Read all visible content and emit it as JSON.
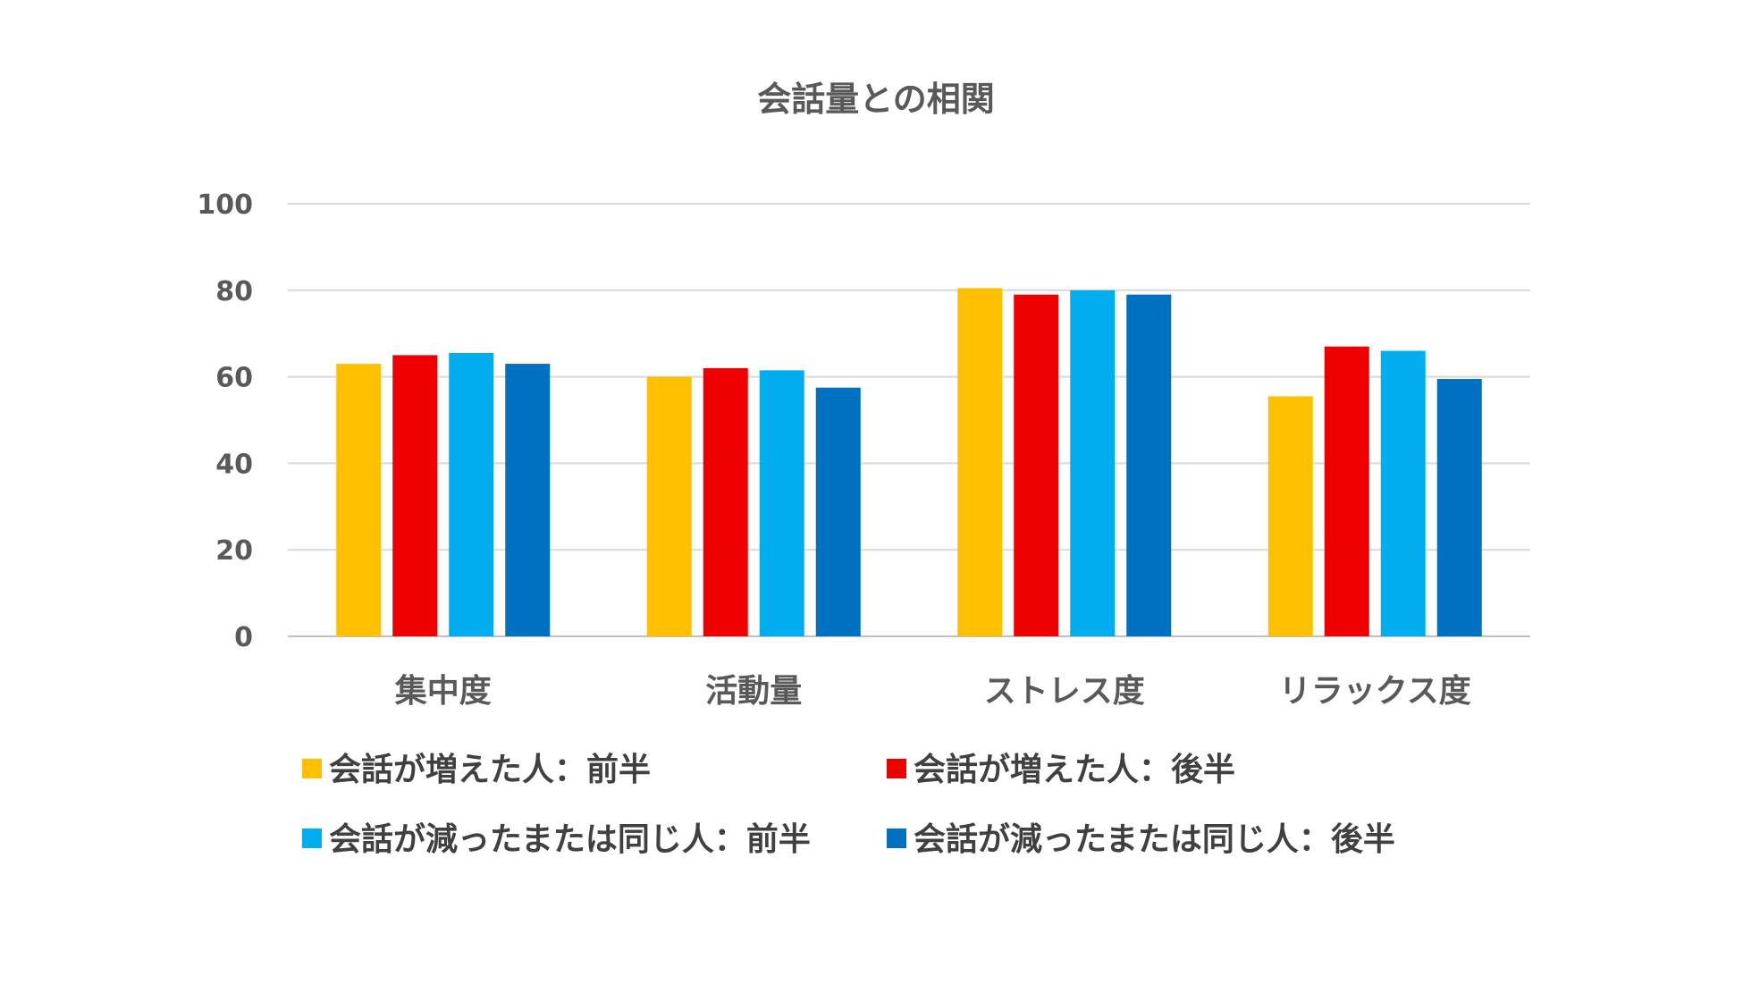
{
  "chart_data": {
    "type": "bar",
    "title": "会話量との相関",
    "categories": [
      "集中度",
      "活動量",
      "ストレス度",
      "リラックス度"
    ],
    "series": [
      {
        "name": "会話が増えた人：前半",
        "color": "#FFC000",
        "values": [
          63,
          60,
          80.5,
          55.5
        ]
      },
      {
        "name": "会話が増えた人：後半",
        "color": "#EE0000",
        "values": [
          65,
          62,
          79,
          67
        ]
      },
      {
        "name": "会話が減ったまたは同じ人：前半",
        "color": "#00AEEF",
        "values": [
          65.5,
          61.5,
          80,
          66
        ]
      },
      {
        "name": "会話が減ったまたは同じ人：後半",
        "color": "#0070C0",
        "values": [
          63,
          57.5,
          79,
          59.5
        ]
      }
    ],
    "ylim": [
      0,
      100
    ],
    "yticks": [
      0,
      20,
      40,
      60,
      80,
      100
    ],
    "xlabel": "",
    "ylabel": "",
    "grid": true,
    "legend_position": "bottom"
  }
}
